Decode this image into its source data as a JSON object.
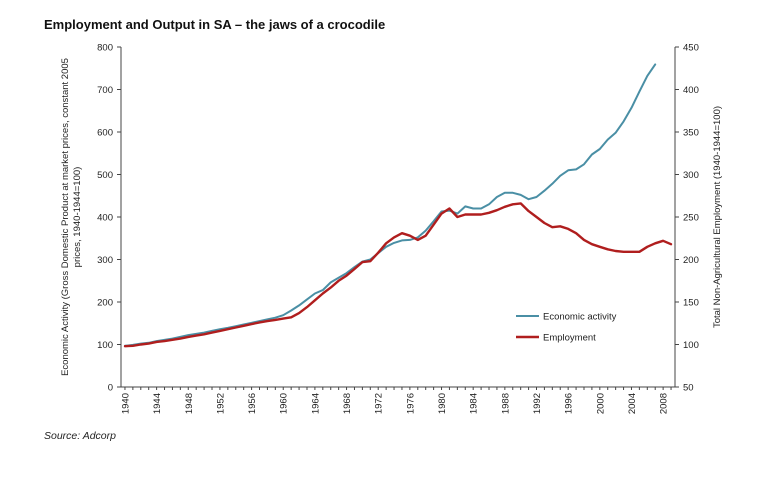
{
  "title": "Employment and Output in SA – the jaws of a crocodile",
  "source": "Source: Adcorp",
  "chart_data": {
    "type": "line",
    "title": "Employment and Output in SA – the jaws of a crocodile",
    "left_axis": {
      "label_line1": "Economic Activity (Gross Domestic Product at market prices, constant 2005",
      "label_line2": "prices, 1940-1944=100)",
      "ylim": [
        0,
        800
      ],
      "ticks": [
        "0",
        "100",
        "200",
        "300",
        "400",
        "500",
        "600",
        "700",
        "800"
      ]
    },
    "right_axis": {
      "label": "Total Non-Agricultural Employment (1940-1944=100)",
      "ylim": [
        50,
        450
      ],
      "ticks": [
        "50",
        "100",
        "150",
        "200",
        "250",
        "300",
        "350",
        "400",
        "450"
      ]
    },
    "x_ticks": [
      "1940",
      "1944",
      "1948",
      "1952",
      "1956",
      "1960",
      "1964",
      "1968",
      "1972",
      "1976",
      "1980",
      "1984",
      "1988",
      "1992",
      "1996",
      "2000",
      "2004",
      "2008"
    ],
    "x": [
      1940,
      1941,
      1942,
      1943,
      1944,
      1945,
      1946,
      1947,
      1948,
      1949,
      1950,
      1951,
      1952,
      1953,
      1954,
      1955,
      1956,
      1957,
      1958,
      1959,
      1960,
      1961,
      1962,
      1963,
      1964,
      1965,
      1966,
      1967,
      1968,
      1969,
      1970,
      1971,
      1972,
      1973,
      1974,
      1975,
      1976,
      1977,
      1978,
      1979,
      1980,
      1981,
      1982,
      1983,
      1984,
      1985,
      1986,
      1987,
      1988,
      1989,
      1990,
      1991,
      1992,
      1993,
      1994,
      1995,
      1996,
      1997,
      1998,
      1999,
      2000,
      2001,
      2002,
      2003,
      2004,
      2005,
      2006,
      2007,
      2008,
      2009
    ],
    "legend_position": "lower-right",
    "grid": false,
    "series": [
      {
        "name": "Economic activity",
        "axis": "left",
        "color": "#4A8FA5",
        "values": [
          97,
          99,
          102,
          104,
          108,
          111,
          114,
          118,
          122,
          125,
          128,
          132,
          136,
          139,
          143,
          147,
          151,
          155,
          159,
          163,
          169,
          180,
          192,
          206,
          220,
          228,
          246,
          257,
          268,
          282,
          295,
          300,
          315,
          330,
          339,
          345,
          346,
          352,
          368,
          390,
          413,
          415,
          408,
          425,
          420,
          420,
          430,
          447,
          457,
          457,
          452,
          442,
          447,
          462,
          478,
          497,
          510,
          512,
          524,
          547,
          560,
          582,
          598,
          625,
          657,
          695,
          732,
          759,
          null,
          null
        ]
      },
      {
        "name": "Employment",
        "axis": "right",
        "color": "#B01E1E",
        "values": [
          98,
          98.5,
          100,
          101,
          103,
          104,
          105.5,
          107,
          109,
          110.5,
          112,
          114,
          116,
          118,
          120,
          122,
          124,
          126,
          127.5,
          129,
          130.5,
          132,
          137,
          144,
          152,
          160,
          167,
          175,
          181,
          189,
          197,
          198,
          208,
          219,
          226,
          231,
          228,
          223,
          228,
          241,
          254,
          260,
          250,
          253,
          253,
          253,
          255,
          258,
          262,
          265,
          266,
          257,
          250,
          243,
          238,
          239,
          236,
          231,
          223,
          218,
          215,
          212,
          210,
          209,
          209,
          209,
          215,
          219,
          222,
          218
        ]
      }
    ]
  }
}
